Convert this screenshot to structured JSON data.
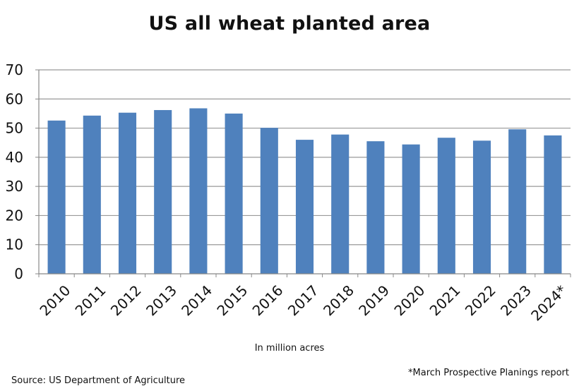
{
  "chart_data": {
    "type": "bar",
    "title": "US all wheat planted area",
    "xlabel": "In million acres",
    "ylabel": "",
    "categories": [
      "2010",
      "2011",
      "2012",
      "2013",
      "2014",
      "2015",
      "2016",
      "2017",
      "2018",
      "2019",
      "2020",
      "2021",
      "2022",
      "2023",
      "2024*"
    ],
    "values": [
      52.6,
      54.3,
      55.3,
      56.2,
      56.8,
      55.0,
      50.1,
      46.0,
      47.8,
      45.5,
      44.4,
      46.7,
      45.7,
      49.6,
      47.5
    ],
    "yticks": [
      "0",
      "10",
      "20",
      "30",
      "40",
      "50",
      "60",
      "70"
    ],
    "ylim": [
      0,
      70
    ],
    "grid": true,
    "bar_color": "#4f81bd",
    "grid_color": "#999999",
    "note": "*March Prospective Planings report",
    "source": "Source: US Department of Agriculture"
  }
}
